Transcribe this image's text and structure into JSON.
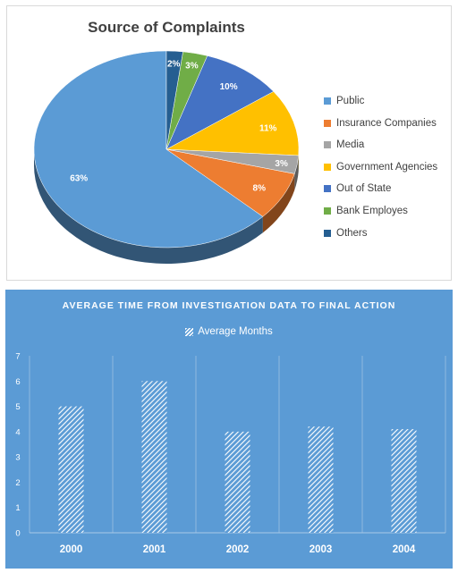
{
  "chart_data": [
    {
      "type": "pie",
      "title": "Source of Complaints",
      "categories": [
        "Public",
        "Insurance Companies",
        "Media",
        "Government Agencies",
        "Out of State",
        "Bank Employes",
        "Others"
      ],
      "values": [
        63,
        8,
        3,
        11,
        10,
        3,
        2
      ],
      "data_labels": [
        "63%",
        "8%",
        "3%",
        "11%",
        "10%",
        "3%",
        "2%"
      ],
      "colors": [
        "#5b9bd5",
        "#ed7d31",
        "#a5a5a5",
        "#ffc000",
        "#4472c4",
        "#70ad47",
        "#255e91"
      ],
      "legend_position": "right",
      "style": "3d"
    },
    {
      "type": "bar",
      "title": "AVERAGE TIME FROM INVESTIGATION DATA TO FINAL ACTION",
      "categories": [
        "2000",
        "2001",
        "2002",
        "2003",
        "2004"
      ],
      "series": [
        {
          "name": "Average Months",
          "values": [
            5,
            6,
            4,
            4.2,
            4.1
          ]
        }
      ],
      "ylim": [
        0,
        7
      ],
      "yticks": [
        0,
        1,
        2,
        3,
        4,
        5,
        6,
        7
      ],
      "xlabel": "",
      "ylabel": "",
      "grid": "vertical",
      "legend_position": "top",
      "background": "#5b9bd5",
      "bar_fill": "white diagonal hatch"
    }
  ]
}
